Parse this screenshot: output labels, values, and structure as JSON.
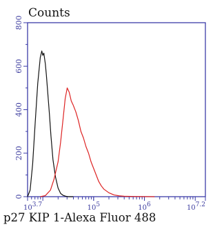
{
  "chart_data": {
    "type": "line",
    "title": "Counts",
    "xlabel": "p27 KIP 1-Alexa Fluor 488",
    "ylabel": "",
    "x_scale": "log",
    "xlim_log10": [
      3.7,
      7.2
    ],
    "ylim": [
      0,
      800
    ],
    "y_ticks": [
      0,
      200,
      400,
      600,
      800
    ],
    "x_ticks": [
      {
        "base": "10",
        "exp": "3.7",
        "log10": 3.7
      },
      {
        "base": "10",
        "exp": "5",
        "log10": 5
      },
      {
        "base": "10",
        "exp": "6",
        "log10": 6
      },
      {
        "base": "10",
        "exp": "7.2",
        "log10": 7.2
      }
    ],
    "grid": false,
    "series": [
      {
        "color": "#111111",
        "x_log10": [
          3.7,
          3.75,
          3.8,
          3.85,
          3.9,
          3.95,
          3.98,
          4.0,
          4.02,
          4.05,
          4.07,
          4.1,
          4.13,
          4.16,
          4.2,
          4.25,
          4.3,
          4.35,
          4.4,
          4.45,
          4.5,
          4.55,
          4.6
        ],
        "y": [
          0,
          30,
          150,
          340,
          520,
          640,
          670,
          650,
          660,
          610,
          560,
          470,
          380,
          280,
          170,
          90,
          40,
          15,
          6,
          2,
          0,
          0,
          0
        ]
      },
      {
        "color": "#dd2222",
        "x_log10": [
          3.95,
          4.05,
          4.15,
          4.22,
          4.3,
          4.35,
          4.4,
          4.44,
          4.48,
          4.52,
          4.56,
          4.6,
          4.65,
          4.7,
          4.75,
          4.8,
          4.85,
          4.9,
          4.95,
          5.0,
          5.05,
          5.1,
          5.15,
          5.2,
          5.3,
          5.4,
          5.5,
          5.6,
          5.8,
          6.2
        ],
        "y": [
          0,
          5,
          30,
          80,
          160,
          250,
          360,
          450,
          500,
          480,
          440,
          420,
          390,
          350,
          300,
          270,
          230,
          200,
          160,
          130,
          100,
          70,
          50,
          35,
          18,
          8,
          4,
          2,
          1,
          0
        ]
      }
    ]
  }
}
